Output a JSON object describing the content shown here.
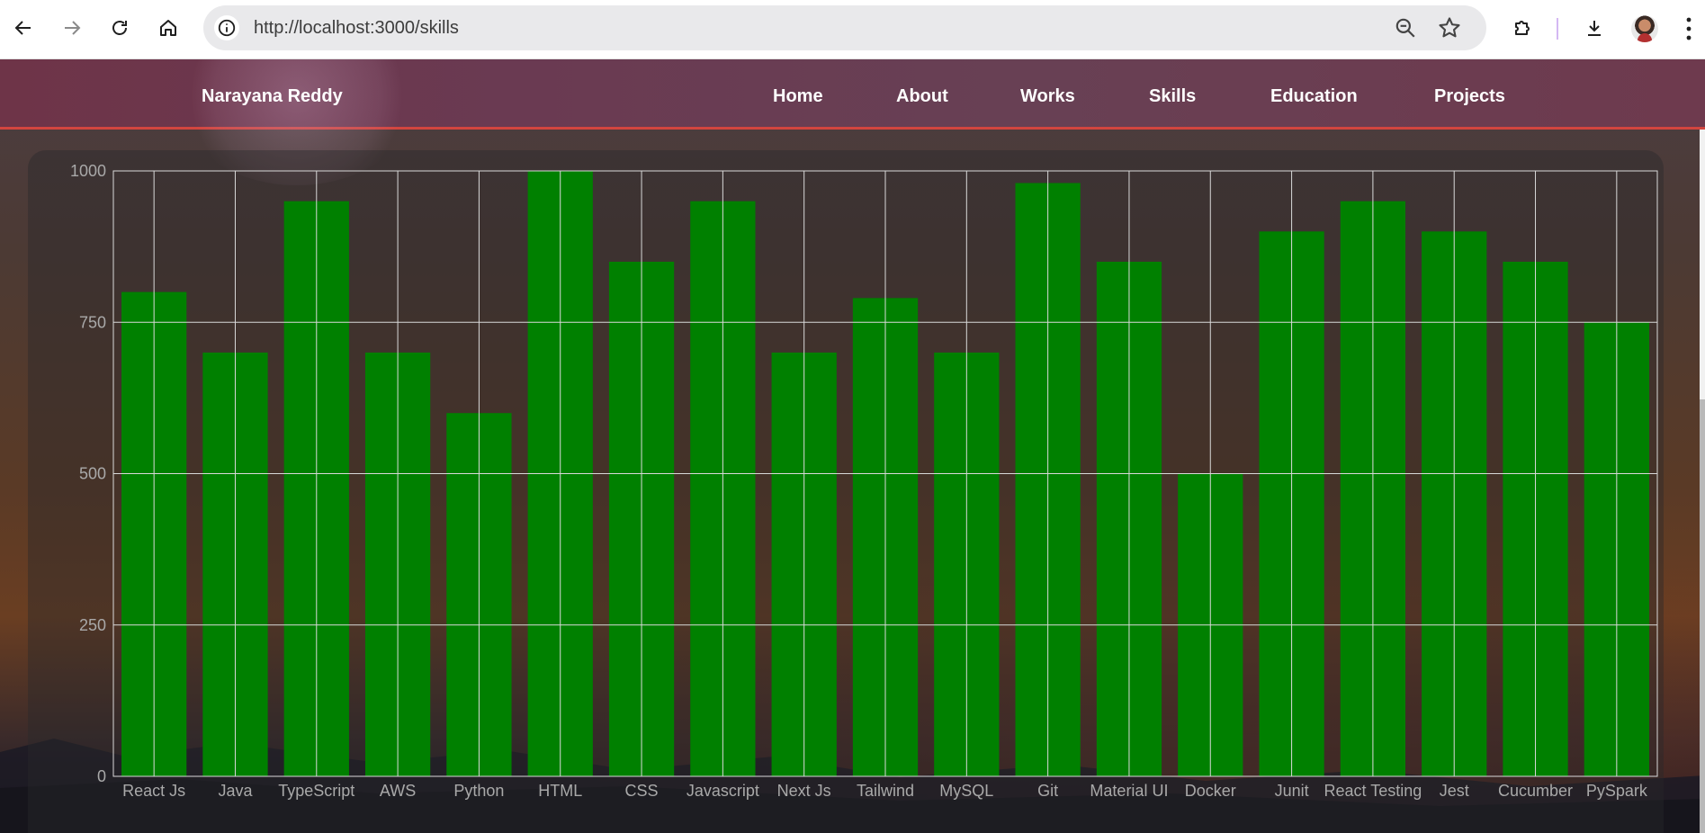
{
  "browser": {
    "url": "http://localhost:3000/skills",
    "buttons": {
      "back": "back-icon",
      "forward": "forward-icon",
      "reload": "reload-icon",
      "home": "home-icon",
      "site_info": "info-icon",
      "zoom": "zoom-out-icon",
      "bookmark": "star-icon",
      "extensions": "puzzle-icon",
      "downloads": "download-icon",
      "menu": "kebab-menu-icon"
    }
  },
  "navbar": {
    "brand": "Narayana Reddy",
    "items": [
      {
        "label": "Home"
      },
      {
        "label": "About"
      },
      {
        "label": "Works"
      },
      {
        "label": "Skills"
      },
      {
        "label": "Education"
      },
      {
        "label": "Projects"
      }
    ]
  },
  "chart_data": {
    "type": "bar",
    "categories": [
      "React Js",
      "Java",
      "TypeScript",
      "AWS",
      "Python",
      "HTML",
      "CSS",
      "Javascript",
      "Next Js",
      "Tailwind",
      "MySQL",
      "Git",
      "Material UI",
      "Docker",
      "Junit",
      "React Testing",
      "Jest",
      "Cucumber",
      "PySpark"
    ],
    "values": [
      800,
      700,
      950,
      700,
      600,
      1000,
      850,
      950,
      700,
      790,
      700,
      980,
      850,
      500,
      900,
      950,
      900,
      850,
      750
    ],
    "title": "",
    "xlabel": "",
    "ylabel": "",
    "ylim": [
      0,
      1000
    ],
    "yticks": [
      0,
      250,
      500,
      750,
      1000
    ],
    "grid": true,
    "legend": "none",
    "bar_color": "#008000",
    "grid_color": "#d9d9d9",
    "tick_color": "#a9a9a9"
  }
}
